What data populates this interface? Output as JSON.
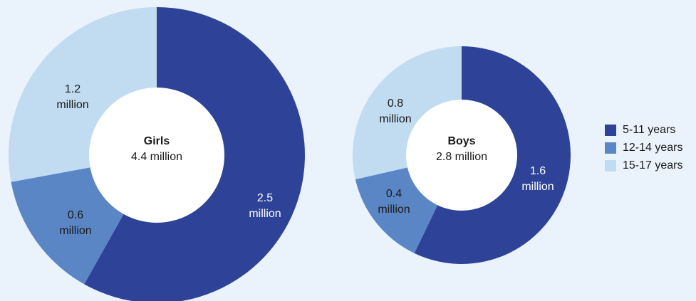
{
  "colors": {
    "background": "#eaf3fb",
    "5-11 years": "#2e4398",
    "12-14 years": "#5b86c5",
    "15-17 years": "#c1dbf1",
    "hole": "#ffffff"
  },
  "legend": {
    "placement": "right",
    "items": [
      {
        "label": "5-11 years",
        "color": "#2e4398"
      },
      {
        "label": "12-14 years",
        "color": "#5b86c5"
      },
      {
        "label": "15-17 years",
        "color": "#c1dbf1"
      }
    ]
  },
  "chart_data": [
    {
      "type": "pie",
      "variant": "donut",
      "center_title": "Girls",
      "center_value": "4.4 million",
      "total": 4.4,
      "categories": [
        "5-11 years",
        "12-14 years",
        "15-17 years"
      ],
      "values": [
        2.5,
        0.6,
        1.2
      ],
      "labels": [
        [
          "2.5",
          "million"
        ],
        [
          "0.6",
          "million"
        ],
        [
          "1.2",
          "million"
        ]
      ]
    },
    {
      "type": "pie",
      "variant": "donut",
      "center_title": "Boys",
      "center_value": "2.8 million",
      "total": 2.8,
      "categories": [
        "5-11 years",
        "12-14 years",
        "15-17 years"
      ],
      "values": [
        1.6,
        0.4,
        0.8
      ],
      "labels": [
        [
          "1.6",
          "million"
        ],
        [
          "0.4",
          "million"
        ],
        [
          "0.8",
          "million"
        ]
      ]
    }
  ]
}
